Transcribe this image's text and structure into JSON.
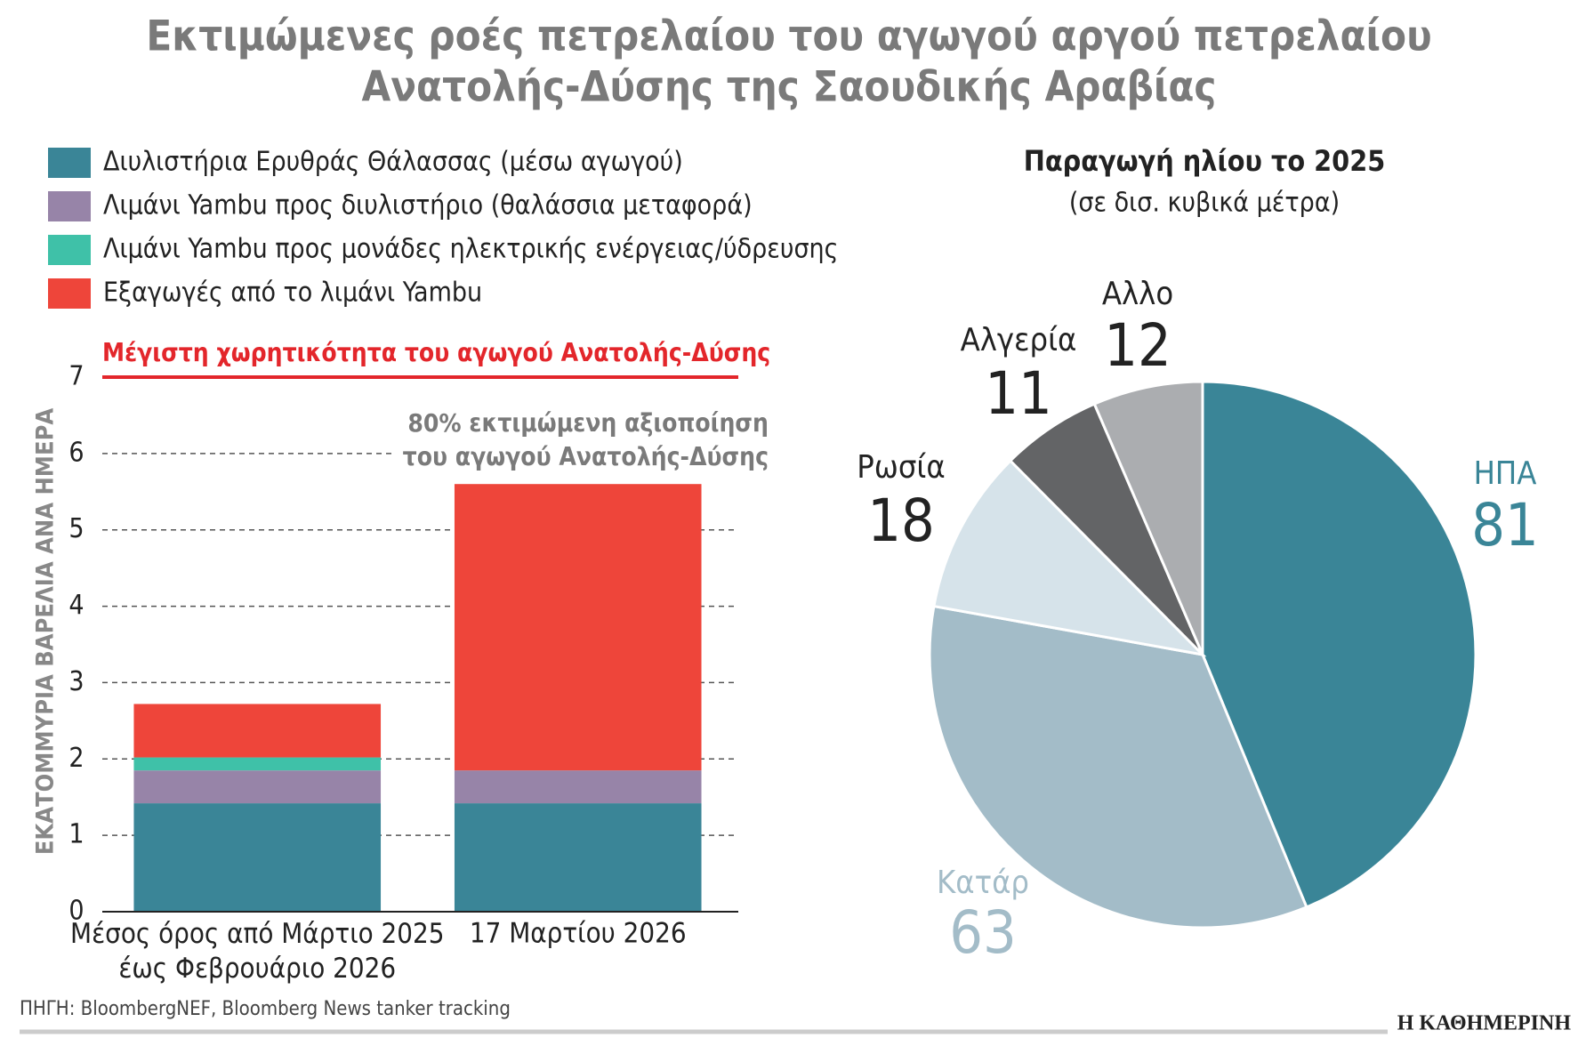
{
  "title": [
    "Εκτιμώμενες ροές πετρελαίου του αγωγού αργού πετρελαίου",
    "Ανατολής-Δύσης της Σαουδικής Αραβίας"
  ],
  "source": "ΠΗΓΗ: BloombergNEF, Bloomberg News tanker tracking",
  "publisher": "Η ΚΑΘΗΜΕΡΙΝΗ",
  "chart_data": [
    {
      "type": "stacked-bar",
      "y_label": "ΕΚΑΤΟΜΜΥΡΙΑ ΒΑΡΕΛΙΑ ΑΝΑ ΗΜΕΡΑ",
      "categories": [
        "Μέσος όρος από Μάρτιο 2025\nέως Φεβρουάριο 2026",
        "17 Μαρτίου 2026"
      ],
      "series": [
        {
          "name": "Διυλιστήρια Ερυθράς Θάλασσας (μέσω αγωγού)",
          "color": "#3a8597",
          "values": [
            1.42,
            1.42
          ]
        },
        {
          "name": "Λιμάνι Yambu προς διυλιστήριο (θαλάσσια μεταφορά)",
          "color": "#9784a8",
          "values": [
            0.43,
            0.43
          ]
        },
        {
          "name": "Λιμάνι Yambu προς μονάδες ηλεκτρικής ενέργειας/ύδρευσης",
          "color": "#3fc1a8",
          "values": [
            0.17,
            0
          ]
        },
        {
          "name": "Εξαγωγές από το λιμάνι Yambu",
          "color": "#ee453a",
          "values": [
            0.7,
            3.75
          ]
        }
      ],
      "ylim": [
        0,
        7
      ],
      "yticks": [
        0,
        1,
        2,
        3,
        4,
        5,
        6,
        7
      ],
      "grid": true,
      "reference_line": {
        "value": 7,
        "label": "Μέγιστη χωρητικότητα του αγωγού Ανατολής-Δύσης",
        "color": "#e3262b"
      },
      "annotation": "80% εκτιμώμενη αξιοποίηση\nτου αγωγού Ανατολής-Δύσης"
    },
    {
      "type": "pie",
      "title": "Παραγωγή ηλίου το 2025",
      "subtitle": "(σε δισ. κυβικά μέτρα)",
      "categories": [
        "ΗΠΑ",
        "Κατάρ",
        "Ρωσία",
        "Αλγερία",
        "Αλλο"
      ],
      "values": [
        81,
        63,
        18,
        11,
        12
      ],
      "colors": [
        "#3a8597",
        "#a3bcc8",
        "#d6e3ea",
        "#636466",
        "#abadb0"
      ]
    }
  ]
}
